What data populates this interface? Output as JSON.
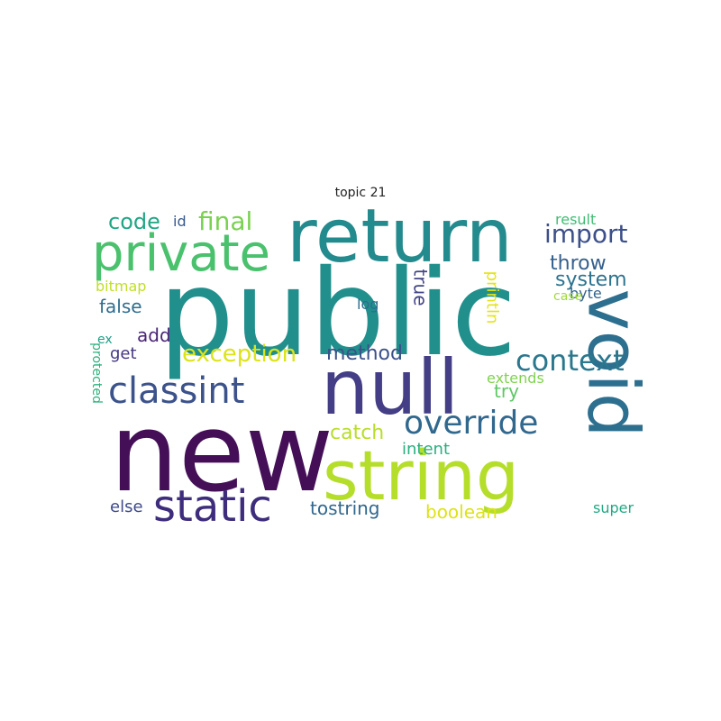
{
  "title": "topic 21",
  "words": [
    {
      "text": "public",
      "color": "#21908C"
    },
    {
      "text": "new",
      "color": "#440F57"
    },
    {
      "text": "return",
      "color": "#238A8D"
    },
    {
      "text": "null",
      "color": "#433E85"
    },
    {
      "text": "string",
      "color": "#B5DE2B"
    },
    {
      "text": "void",
      "color": "#2D6F8E",
      "rotated": true
    },
    {
      "text": "private",
      "color": "#4AC16D"
    },
    {
      "text": "static",
      "color": "#3E2D7C"
    },
    {
      "text": "classint",
      "color": "#3B528B"
    },
    {
      "text": "override",
      "color": "#31688E"
    },
    {
      "text": "exception",
      "color": "#DCE319"
    },
    {
      "text": "context",
      "color": "#2A778E"
    },
    {
      "text": "final",
      "color": "#7AD151"
    },
    {
      "text": "import",
      "color": "#3C4F8A"
    },
    {
      "text": "code",
      "color": "#21A685"
    },
    {
      "text": "throw",
      "color": "#35608D"
    },
    {
      "text": "system",
      "color": "#2C738E"
    },
    {
      "text": "method",
      "color": "#3B518B"
    },
    {
      "text": "catch",
      "color": "#B8DE29"
    },
    {
      "text": "true",
      "color": "#414487",
      "rotated": true
    },
    {
      "text": "println",
      "color": "#E5E419",
      "rotated": true
    },
    {
      "text": "false",
      "color": "#2E6E8E"
    },
    {
      "text": "add",
      "color": "#482475"
    },
    {
      "text": "try",
      "color": "#5DC863"
    },
    {
      "text": "intent",
      "color": "#29AF7F"
    },
    {
      "text": "tostring",
      "color": "#31678E"
    },
    {
      "text": "boolean",
      "color": "#DDE318"
    },
    {
      "text": "else",
      "color": "#3E4A89"
    },
    {
      "text": "get",
      "color": "#453781"
    },
    {
      "text": "log",
      "color": "#2F6C8E"
    },
    {
      "text": "bitmap",
      "color": "#C0DF25"
    },
    {
      "text": "extends",
      "color": "#7FD34E"
    },
    {
      "text": "result",
      "color": "#40BD72"
    },
    {
      "text": "byte",
      "color": "#33628D"
    },
    {
      "text": "case",
      "color": "#9FDA3A"
    },
    {
      "text": "super",
      "color": "#22A884"
    },
    {
      "text": "id",
      "color": "#38598C"
    },
    {
      "text": "ex",
      "color": "#1FA188"
    },
    {
      "text": "protected",
      "color": "#2DB27D",
      "rotated": true
    }
  ]
}
